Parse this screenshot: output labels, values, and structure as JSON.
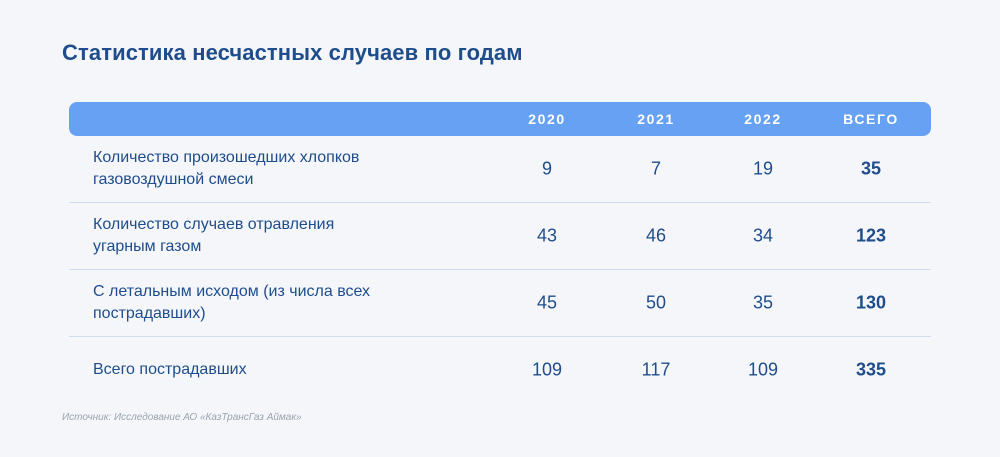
{
  "title": "Статистика несчастных случаев по годам",
  "table": {
    "headers": [
      "2020",
      "2021",
      "2022",
      "ВСЕГО"
    ],
    "rows": [
      {
        "label": "Количество произошедших хлопков газовоздушной смеси",
        "values": [
          "9",
          "7",
          "19",
          "35"
        ]
      },
      {
        "label": "Количество случаев отравления угарным газом",
        "values": [
          "43",
          "46",
          "34",
          "123"
        ]
      },
      {
        "label": "С летальным исходом (из числа всех пострадавших)",
        "values": [
          "45",
          "50",
          "35",
          "130"
        ]
      },
      {
        "label": "Всего пострадавших",
        "values": [
          "109",
          "117",
          "109",
          "335"
        ]
      }
    ]
  },
  "source": "Источник: Исследование АО «КазТрансГаз Аймак»"
}
